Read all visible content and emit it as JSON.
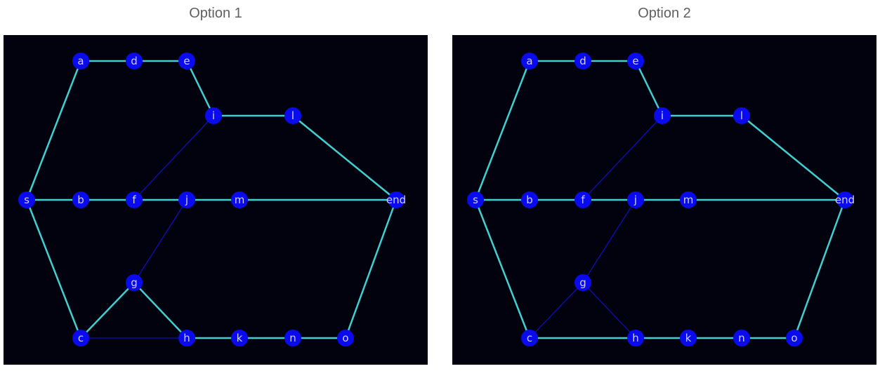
{
  "options": [
    {
      "title": "Option 1",
      "background": "#02020f",
      "node_color": "#0a0aee",
      "highlight_color": "#40d0d0",
      "normal_color": "#1010e8",
      "nodes": [
        "s",
        "a",
        "d",
        "e",
        "i",
        "l",
        "b",
        "f",
        "j",
        "m",
        "end",
        "g",
        "c",
        "h",
        "k",
        "n",
        "o"
      ],
      "highlighted_edges": [
        [
          "s",
          "a"
        ],
        [
          "a",
          "d"
        ],
        [
          "d",
          "e"
        ],
        [
          "e",
          "i"
        ],
        [
          "i",
          "l"
        ],
        [
          "l",
          "end"
        ],
        [
          "s",
          "b"
        ],
        [
          "b",
          "f"
        ],
        [
          "f",
          "j"
        ],
        [
          "j",
          "m"
        ],
        [
          "m",
          "end"
        ],
        [
          "s",
          "c"
        ],
        [
          "c",
          "g"
        ],
        [
          "g",
          "h"
        ],
        [
          "h",
          "k"
        ],
        [
          "k",
          "n"
        ],
        [
          "n",
          "o"
        ],
        [
          "o",
          "end"
        ]
      ],
      "normal_edges": [
        [
          "i",
          "f"
        ],
        [
          "j",
          "g"
        ],
        [
          "c",
          "h"
        ]
      ]
    },
    {
      "title": "Option 2",
      "background": "#02020f",
      "node_color": "#0a0aee",
      "highlight_color": "#40d0d0",
      "normal_color": "#1010e8",
      "nodes": [
        "s",
        "a",
        "d",
        "e",
        "i",
        "l",
        "b",
        "f",
        "j",
        "m",
        "end",
        "g",
        "c",
        "h",
        "k",
        "n",
        "o"
      ],
      "highlighted_edges": [
        [
          "s",
          "a"
        ],
        [
          "a",
          "d"
        ],
        [
          "d",
          "e"
        ],
        [
          "e",
          "i"
        ],
        [
          "i",
          "l"
        ],
        [
          "l",
          "end"
        ],
        [
          "s",
          "b"
        ],
        [
          "b",
          "f"
        ],
        [
          "f",
          "j"
        ],
        [
          "j",
          "m"
        ],
        [
          "m",
          "end"
        ],
        [
          "s",
          "c"
        ],
        [
          "c",
          "h"
        ],
        [
          "h",
          "k"
        ],
        [
          "k",
          "n"
        ],
        [
          "n",
          "o"
        ],
        [
          "o",
          "end"
        ]
      ],
      "normal_edges": [
        [
          "i",
          "f"
        ],
        [
          "j",
          "g"
        ],
        [
          "c",
          "g"
        ],
        [
          "g",
          "h"
        ]
      ]
    }
  ]
}
